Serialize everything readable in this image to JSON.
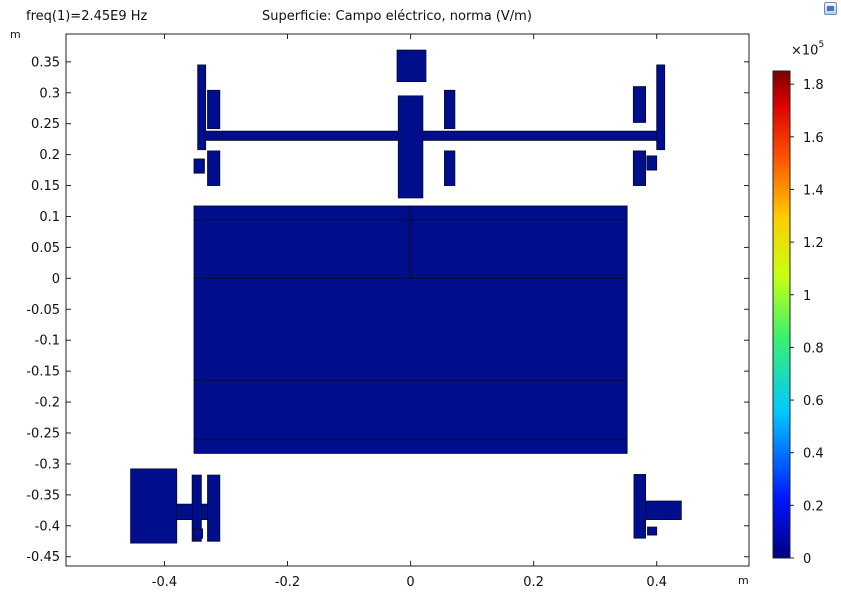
{
  "header": {
    "frequency_label": "freq(1)=2.45E9 Hz",
    "plot_title": "Superficie: Campo eléctrico, norma (V/m)"
  },
  "toolbar": {
    "corner_button_icon": "image-icon"
  },
  "chart_data": {
    "type": "heatmap",
    "title": "Superficie: Campo eléctrico, norma (V/m)",
    "annotation": "freq(1)=2.45E9 Hz",
    "xlabel": "m",
    "ylabel": "m",
    "xlim": [
      -0.56,
      0.55
    ],
    "ylim": [
      -0.465,
      0.395
    ],
    "x_ticks": [
      -0.4,
      -0.2,
      0,
      0.2,
      0.4
    ],
    "x_tick_labels": [
      "-0.4",
      "-0.2",
      "0",
      "0.2",
      "0.4"
    ],
    "y_ticks": [
      0.35,
      0.3,
      0.25,
      0.2,
      0.15,
      0.1,
      0.05,
      0,
      -0.05,
      -0.1,
      -0.15,
      -0.2,
      -0.25,
      -0.3,
      -0.35,
      -0.4,
      -0.45
    ],
    "y_tick_labels": [
      "0.35",
      "0.3",
      "0.25",
      "0.2",
      "0.15",
      "0.1",
      "0.05",
      "0",
      "-0.05",
      "-0.1",
      "-0.15",
      "-0.2",
      "-0.25",
      "-0.3",
      "-0.35",
      "-0.4",
      "-0.45"
    ],
    "colorbar": {
      "exponent_label": "×10",
      "exponent_power": "5",
      "ticks": [
        0,
        0.2,
        0.4,
        0.6,
        0.8,
        1,
        1.2,
        1.4,
        1.6,
        1.8
      ],
      "tick_labels": [
        "0",
        "0.2",
        "0.4",
        "0.6",
        "0.8",
        "1",
        "1.2",
        "1.4",
        "1.6",
        "1.8"
      ],
      "min": 0,
      "max": 1.85
    },
    "field_color": "#000e8c",
    "shapes": [
      {
        "name": "cavity-main",
        "x": [
          -0.352,
          0.352
        ],
        "y": [
          -0.283,
          0.117
        ]
      },
      {
        "name": "waveguide-horizontal",
        "x": [
          -0.345,
          0.41
        ],
        "y": [
          0.223,
          0.238
        ]
      },
      {
        "name": "waveguide-vertical",
        "x": [
          -0.02,
          0.02
        ],
        "y": [
          0.13,
          0.295
        ]
      },
      {
        "name": "top-block",
        "x": [
          -0.022,
          0.025
        ],
        "y": [
          0.318,
          0.369
        ]
      },
      {
        "name": "left-post",
        "x": [
          -0.346,
          -0.333
        ],
        "y": [
          0.208,
          0.345
        ]
      },
      {
        "name": "left-inner-post",
        "x": [
          -0.33,
          -0.31
        ],
        "y": [
          0.242,
          0.304
        ]
      },
      {
        "name": "left-inner-post-low",
        "x": [
          -0.33,
          -0.31
        ],
        "y": [
          0.15,
          0.206
        ]
      },
      {
        "name": "left-stub",
        "x": [
          -0.352,
          -0.335
        ],
        "y": [
          0.17,
          0.193
        ]
      },
      {
        "name": "center-left-post",
        "x": [
          0.055,
          0.072
        ],
        "y": [
          0.242,
          0.304
        ]
      },
      {
        "name": "center-left-post-low",
        "x": [
          0.055,
          0.072
        ],
        "y": [
          0.15,
          0.206
        ]
      },
      {
        "name": "right-post",
        "x": [
          0.4,
          0.413
        ],
        "y": [
          0.208,
          0.345
        ]
      },
      {
        "name": "right-inner-post",
        "x": [
          0.362,
          0.382
        ],
        "y": [
          0.252,
          0.31
        ]
      },
      {
        "name": "right-inner-post-low",
        "x": [
          0.362,
          0.382
        ],
        "y": [
          0.15,
          0.206
        ]
      },
      {
        "name": "right-stub",
        "x": [
          0.384,
          0.4
        ],
        "y": [
          0.175,
          0.198
        ]
      },
      {
        "name": "feed-line",
        "x": [
          -0.002,
          0.002
        ],
        "y": [
          0.0,
          0.117
        ]
      },
      {
        "name": "bottom-left-block",
        "x": [
          -0.455,
          -0.38
        ],
        "y": [
          -0.428,
          -0.308
        ]
      },
      {
        "name": "bottom-left-arm",
        "x": [
          -0.38,
          -0.312
        ],
        "y": [
          -0.39,
          -0.365
        ]
      },
      {
        "name": "bottom-left-post",
        "x": [
          -0.355,
          -0.34
        ],
        "y": [
          -0.425,
          -0.318
        ]
      },
      {
        "name": "bottom-left-post-2",
        "x": [
          -0.33,
          -0.31
        ],
        "y": [
          -0.425,
          -0.318
        ]
      },
      {
        "name": "bottom-left-stub",
        "x": [
          -0.352,
          -0.338
        ],
        "y": [
          -0.42,
          -0.405
        ]
      },
      {
        "name": "bottom-right-post",
        "x": [
          0.363,
          0.382
        ],
        "y": [
          -0.42,
          -0.317
        ]
      },
      {
        "name": "bottom-right-arm",
        "x": [
          0.382,
          0.44
        ],
        "y": [
          -0.39,
          -0.36
        ]
      },
      {
        "name": "bottom-right-stub",
        "x": [
          0.385,
          0.4
        ],
        "y": [
          -0.415,
          -0.402
        ]
      }
    ]
  }
}
